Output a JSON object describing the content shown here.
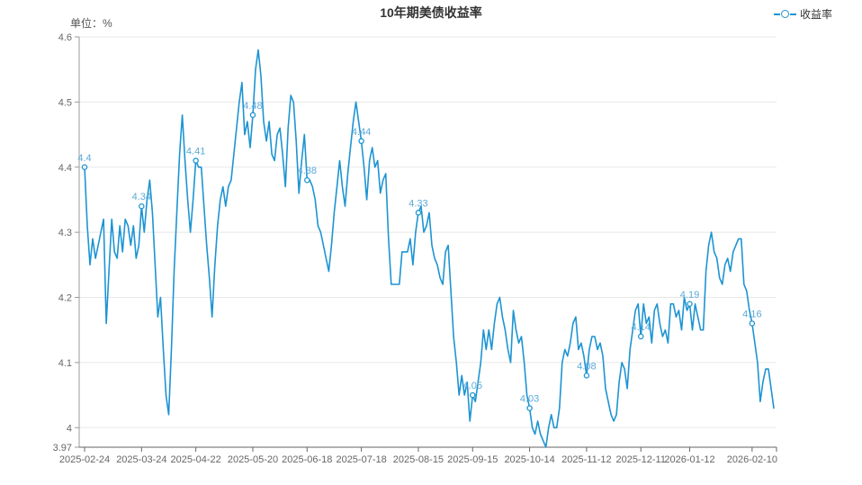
{
  "header": {
    "title": "10年期美债收益率",
    "unit_label": "单位：%"
  },
  "legend": {
    "label": "收益率"
  },
  "colors": {
    "line": "#1d94d2",
    "marker_fill": "#ffffff",
    "data_label": "#5aa9da",
    "grid": "#e8e8e8",
    "x_axis_line": "#666666",
    "y_axis_line": "#999999",
    "tick": "#999999",
    "axis_text": "#666666",
    "title_text": "#333333",
    "background": "#ffffff"
  },
  "chart_data": {
    "type": "line",
    "title": "10年期美债收益率",
    "unit": "%",
    "series_name": "收益率",
    "ylim": [
      3.97,
      4.6
    ],
    "grid_on": true,
    "legend_position": "top-right",
    "y_ticks": [
      {
        "label": "4.6",
        "value": 4.6
      },
      {
        "label": "4.5",
        "value": 4.5
      },
      {
        "label": "4.4",
        "value": 4.4
      },
      {
        "label": "4.3",
        "value": 4.3
      },
      {
        "label": "4.2",
        "value": 4.2
      },
      {
        "label": "4.1",
        "value": 4.1
      },
      {
        "label": "4",
        "value": 4.0
      },
      {
        "label": "3.97",
        "value": 3.97
      }
    ],
    "x_tick_labels": [
      "2025-02-24",
      "2025-03-24",
      "2025-04-22",
      "2025-05-20",
      "2025-06-18",
      "2025-07-18",
      "2025-08-15",
      "2025-09-15",
      "2025-10-14",
      "2025-11-12",
      "2025-12-11",
      "2026-01-12",
      "2026-02-10"
    ],
    "x_tick_indices": [
      0,
      21,
      41,
      62,
      82,
      102,
      123,
      143,
      164,
      185,
      205,
      223,
      246
    ],
    "marked_points": [
      {
        "index": 0,
        "label": "4.4"
      },
      {
        "index": 21,
        "label": "4.34"
      },
      {
        "index": 41,
        "label": "4.41"
      },
      {
        "index": 62,
        "label": "4.48"
      },
      {
        "index": 82,
        "label": "4.38"
      },
      {
        "index": 102,
        "label": "4.44"
      },
      {
        "index": 123,
        "label": "4.33"
      },
      {
        "index": 143,
        "label": "4.05"
      },
      {
        "index": 164,
        "label": "4.03"
      },
      {
        "index": 185,
        "label": "4.08"
      },
      {
        "index": 205,
        "label": "4.14"
      },
      {
        "index": 223,
        "label": "4.19"
      },
      {
        "index": 246,
        "label": "4.16"
      }
    ],
    "values": [
      4.4,
      4.31,
      4.25,
      4.29,
      4.26,
      4.28,
      4.3,
      4.32,
      4.16,
      4.24,
      4.32,
      4.27,
      4.26,
      4.31,
      4.27,
      4.32,
      4.31,
      4.28,
      4.31,
      4.26,
      4.28,
      4.34,
      4.3,
      4.35,
      4.38,
      4.33,
      4.25,
      4.17,
      4.2,
      4.12,
      4.05,
      4.02,
      4.12,
      4.24,
      4.33,
      4.42,
      4.48,
      4.41,
      4.35,
      4.3,
      4.35,
      4.41,
      4.4,
      4.4,
      4.34,
      4.28,
      4.23,
      4.17,
      4.25,
      4.31,
      4.35,
      4.37,
      4.34,
      4.37,
      4.38,
      4.42,
      4.46,
      4.5,
      4.53,
      4.45,
      4.47,
      4.43,
      4.48,
      4.55,
      4.58,
      4.54,
      4.47,
      4.44,
      4.47,
      4.42,
      4.41,
      4.45,
      4.46,
      4.42,
      4.37,
      4.46,
      4.51,
      4.5,
      4.44,
      4.36,
      4.41,
      4.45,
      4.38,
      4.38,
      4.37,
      4.35,
      4.31,
      4.3,
      4.28,
      4.26,
      4.24,
      4.28,
      4.33,
      4.37,
      4.41,
      4.37,
      4.34,
      4.39,
      4.43,
      4.47,
      4.5,
      4.47,
      4.44,
      4.4,
      4.35,
      4.41,
      4.43,
      4.4,
      4.41,
      4.36,
      4.38,
      4.39,
      4.29,
      4.22,
      4.22,
      4.22,
      4.22,
      4.27,
      4.27,
      4.27,
      4.29,
      4.25,
      4.3,
      4.33,
      4.34,
      4.3,
      4.31,
      4.33,
      4.28,
      4.26,
      4.25,
      4.23,
      4.22,
      4.27,
      4.28,
      4.21,
      4.14,
      4.1,
      4.05,
      4.08,
      4.05,
      4.07,
      4.01,
      4.05,
      4.04,
      4.07,
      4.1,
      4.15,
      4.12,
      4.15,
      4.12,
      4.16,
      4.19,
      4.2,
      4.17,
      4.15,
      4.12,
      4.1,
      4.18,
      4.15,
      4.13,
      4.14,
      4.1,
      4.05,
      4.03,
      4.0,
      3.99,
      4.01,
      3.99,
      3.98,
      3.97,
      4.0,
      4.02,
      4.0,
      4.0,
      4.03,
      4.1,
      4.12,
      4.11,
      4.13,
      4.16,
      4.17,
      4.12,
      4.13,
      4.11,
      4.08,
      4.12,
      4.14,
      4.14,
      4.12,
      4.13,
      4.11,
      4.06,
      4.04,
      4.02,
      4.01,
      4.02,
      4.07,
      4.1,
      4.09,
      4.06,
      4.12,
      4.15,
      4.18,
      4.19,
      4.14,
      4.19,
      4.16,
      4.17,
      4.13,
      4.18,
      4.19,
      4.16,
      4.14,
      4.15,
      4.13,
      4.19,
      4.19,
      4.17,
      4.18,
      4.15,
      4.2,
      4.18,
      4.19,
      4.15,
      4.19,
      4.17,
      4.15,
      4.15,
      4.24,
      4.28,
      4.3,
      4.27,
      4.26,
      4.23,
      4.22,
      4.25,
      4.26,
      4.24,
      4.27,
      4.28,
      4.29,
      4.29,
      4.22,
      4.21,
      4.18,
      4.16,
      4.13,
      4.1,
      4.04,
      4.07,
      4.09,
      4.09,
      4.06,
      4.03
    ]
  }
}
